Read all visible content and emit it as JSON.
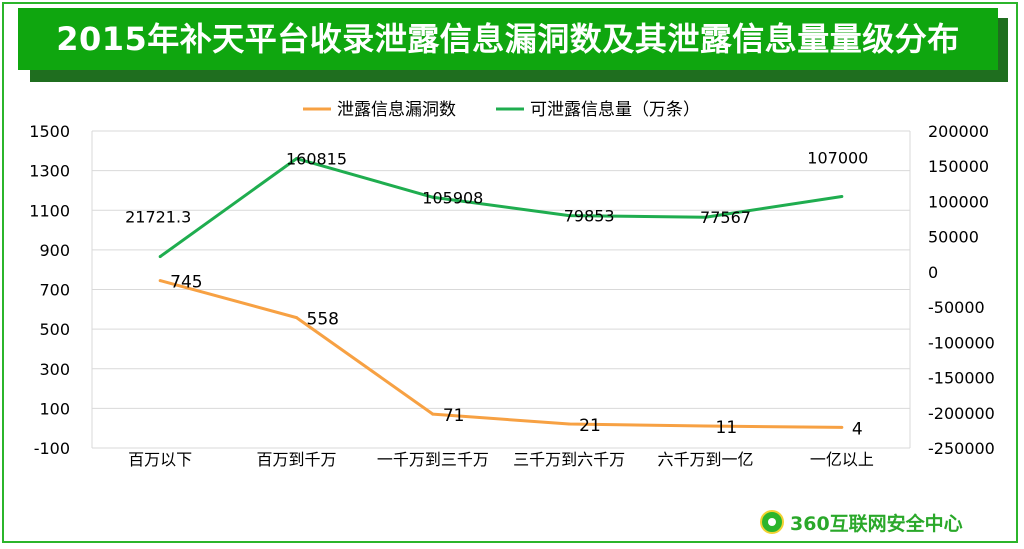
{
  "title": "2015年补天平台收录泄露信息漏洞数及其泄露信息量量级分布",
  "logo_text": "360互联网安全中心",
  "colors": {
    "series1": "#f7a143",
    "series2": "#1fad4f",
    "grid": "#d9d9d9",
    "frame": "#2bb52b",
    "banner": "#0fa60f"
  },
  "chart_data": {
    "type": "line",
    "categories": [
      "百万以下",
      "百万到千万",
      "一千万到三千万",
      "三千万到六千万",
      "六千万到一亿",
      "一亿以上"
    ],
    "series": [
      {
        "name": "泄露信息漏洞数",
        "axis": "left",
        "values": [
          745,
          558,
          71,
          21,
          11,
          4
        ],
        "labels": [
          "745",
          "558",
          "71",
          "21",
          "11",
          "4"
        ]
      },
      {
        "name": "可泄露信息量（万条）",
        "axis": "right",
        "values": [
          21721.3,
          160815,
          105908,
          79853,
          77567,
          107000
        ],
        "labels": [
          "21721.3",
          "160815",
          "105908",
          "79853",
          "77567",
          "107000"
        ]
      }
    ],
    "y_left": {
      "min": -100,
      "max": 1500,
      "ticks": [
        "1500",
        "1300",
        "1100",
        "900",
        "700",
        "500",
        "300",
        "100",
        "-100"
      ]
    },
    "y_right": {
      "min": -250000,
      "max": 200000,
      "ticks": [
        "200000",
        "150000",
        "100000",
        "50000",
        "0",
        "-50000",
        "-100000",
        "-150000",
        "-200000",
        "-250000"
      ]
    },
    "legend_position": "top",
    "grid": true
  }
}
